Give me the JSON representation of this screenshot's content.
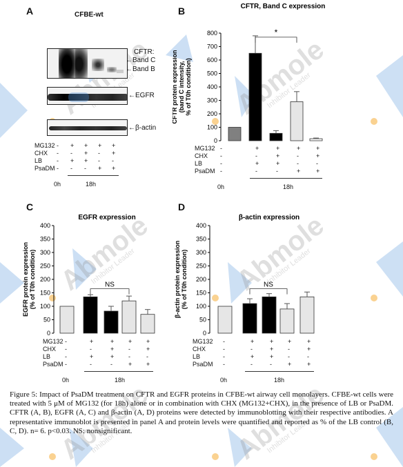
{
  "panels": {
    "A": {
      "letter": "A",
      "title": "CFBE-wt",
      "blot_labels": [
        "CFTR:",
        "Band C",
        "Band B",
        "EGFR",
        "β-actin"
      ]
    },
    "B": {
      "letter": "B"
    },
    "C": {
      "letter": "C"
    },
    "D": {
      "letter": "D"
    }
  },
  "treatments": {
    "row_labels": [
      "MG132",
      "CHX",
      "LB",
      "PsaDM"
    ],
    "columns": [
      {
        "MG132": "-",
        "CHX": "-",
        "LB": "-",
        "PsaDM": "-"
      },
      {
        "MG132": "+",
        "CHX": "-",
        "LB": "+",
        "PsaDM": "-"
      },
      {
        "MG132": "+",
        "CHX": "+",
        "LB": "+",
        "PsaDM": "-"
      },
      {
        "MG132": "+",
        "CHX": "-",
        "LB": "-",
        "PsaDM": "+"
      },
      {
        "MG132": "+",
        "CHX": "+",
        "LB": "-",
        "PsaDM": "+"
      }
    ],
    "time_labels": [
      "0h",
      "18h"
    ]
  },
  "chart_data": [
    {
      "type": "bar",
      "title": "CFTR, Band C expression",
      "ylabel": "CFTR protein expression (band C intensity, % of T0h condition)",
      "ylim": [
        0,
        800
      ],
      "yticks": [
        0,
        100,
        200,
        300,
        400,
        500,
        600,
        700,
        800
      ],
      "categories": [
        "0h",
        "MG132+LB",
        "MG132+CHX+LB",
        "MG132+PsaDM",
        "MG132+CHX+PsaDM"
      ],
      "values": [
        100,
        650,
        55,
        290,
        15
      ],
      "errors": [
        0,
        130,
        20,
        75,
        5
      ],
      "colors": [
        "#808080",
        "#000000",
        "#000000",
        "#e6e6e6",
        "#ffffff"
      ],
      "annotation": "*"
    },
    {
      "type": "bar",
      "title": "EGFR expression",
      "ylabel": "EGFR protein expression (% of T0h condition)",
      "ylim": [
        0,
        400
      ],
      "yticks": [
        0,
        50,
        100,
        150,
        200,
        250,
        300,
        350,
        400
      ],
      "categories": [
        "0h",
        "MG132+LB",
        "MG132+CHX+LB",
        "MG132+PsaDM",
        "MG132+CHX+PsaDM"
      ],
      "values": [
        100,
        135,
        82,
        120,
        70
      ],
      "errors": [
        0,
        8,
        18,
        18,
        18
      ],
      "colors": [
        "#e6e6e6",
        "#000000",
        "#000000",
        "#e6e6e6",
        "#e6e6e6"
      ],
      "annotation": "NS"
    },
    {
      "type": "bar",
      "title": "β-actin expression",
      "ylabel": "β-actin protein expression (% of T0h condition)",
      "ylim": [
        0,
        400
      ],
      "yticks": [
        0,
        50,
        100,
        150,
        200,
        250,
        300,
        350,
        400
      ],
      "categories": [
        "0h",
        "MG132+LB",
        "MG132+CHX+LB",
        "MG132+PsaDM",
        "MG132+CHX+PsaDM"
      ],
      "values": [
        100,
        110,
        135,
        90,
        135
      ],
      "errors": [
        0,
        18,
        12,
        20,
        18
      ],
      "colors": [
        "#e6e6e6",
        "#000000",
        "#000000",
        "#e6e6e6",
        "#e6e6e6"
      ],
      "annotation": "NS"
    }
  ],
  "caption": "Figure 5: Impact of PsaDM treatment on CFTR and EGFR proteins in CFBE-wt airway cell monolayers. CFBE-wt cells were treated with 5 μM of MG132 (for 18h) alone or in combination with CHX (MG132+CHX), in the presence of LB or PsaDM. CFTR (A, B), EGFR (A, C) and β-actin (A, D) proteins were detected by immunoblotting with their respective antibodies. A representative immunoblot is presented in panel A and protein levels were quantified and reported as % of the LB control (B, C, D). n= 6. p<0.03. NS: nonsignificant.",
  "watermark": {
    "brand": "Abmole",
    "tagline": "Inhibitor Leader"
  },
  "colors": {
    "watermark_blue": "#4a90d9",
    "watermark_orange": "#f5a623"
  }
}
